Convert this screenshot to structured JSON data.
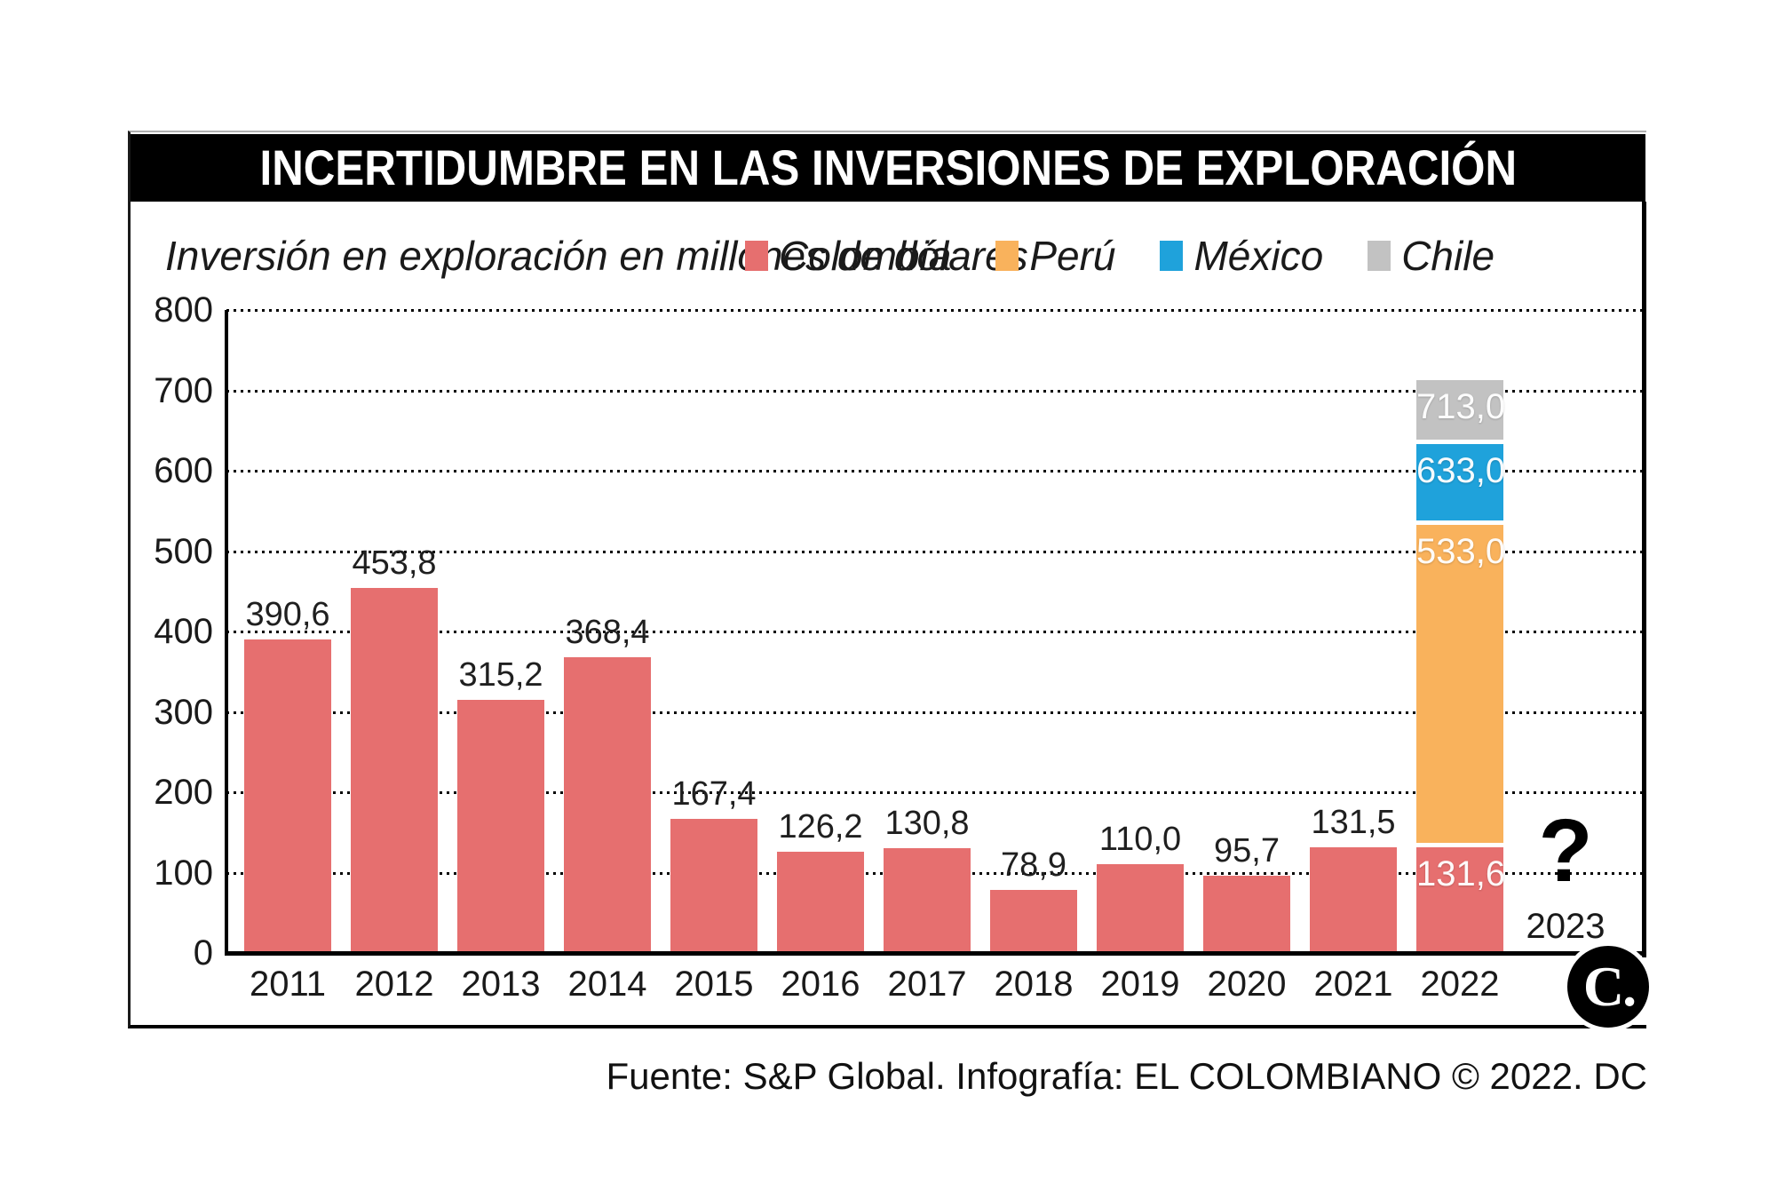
{
  "title": "INCERTIDUMBRE EN LAS INVERSIONES DE EXPLORACIÓN",
  "subtitle": "Inversión en exploración en millones de dólares",
  "legend": [
    {
      "label": "Colombia",
      "color": "#E66F6F"
    },
    {
      "label": "Perú",
      "color": "#F9B25C"
    },
    {
      "label": "México",
      "color": "#1FA2DB"
    },
    {
      "label": "Chile",
      "color": "#C2C2C2"
    }
  ],
  "footer": {
    "source": "Fuente: S&P Global. Infografía: EL COLOMBIANO © 2022. DC",
    "logo_text": "C."
  },
  "chart_data": {
    "type": "bar",
    "title": "INCERTIDUMBRE EN LAS INVERSIONES DE EXPLORACIÓN",
    "ylabel": "Inversión en exploración en millones de dólares",
    "ylim": [
      0,
      800
    ],
    "ytick_step": 100,
    "grid": "dotted-horizontal",
    "legend_position": "top",
    "categories": [
      "2011",
      "2012",
      "2013",
      "2014",
      "2015",
      "2016",
      "2017",
      "2018",
      "2019",
      "2020",
      "2021",
      "2022",
      "2023"
    ],
    "bars": [
      {
        "year": "2011",
        "series": "Colombia",
        "value": 390.6,
        "label": "390,6"
      },
      {
        "year": "2012",
        "series": "Colombia",
        "value": 453.8,
        "label": "453,8"
      },
      {
        "year": "2013",
        "series": "Colombia",
        "value": 315.2,
        "label": "315,2"
      },
      {
        "year": "2014",
        "series": "Colombia",
        "value": 368.4,
        "label": "368,4"
      },
      {
        "year": "2015",
        "series": "Colombia",
        "value": 167.4,
        "label": "167,4"
      },
      {
        "year": "2016",
        "series": "Colombia",
        "value": 126.2,
        "label": "126,2"
      },
      {
        "year": "2017",
        "series": "Colombia",
        "value": 130.8,
        "label": "130,8"
      },
      {
        "year": "2018",
        "series": "Colombia",
        "value": 78.9,
        "label": "78,9"
      },
      {
        "year": "2019",
        "series": "Colombia",
        "value": 110.0,
        "label": "110,0"
      },
      {
        "year": "2020",
        "series": "Colombia",
        "value": 95.7,
        "label": "95,7"
      },
      {
        "year": "2021",
        "series": "Colombia",
        "value": 131.5,
        "label": "131,5"
      }
    ],
    "stacked_bar_2022": {
      "year": "2022",
      "segments": [
        {
          "country": "Colombia",
          "cumulative": 131.6,
          "label": "131,6"
        },
        {
          "country": "Perú",
          "cumulative": 533.0,
          "label": "533,0"
        },
        {
          "country": "México",
          "cumulative": 633.0,
          "label": "633,0"
        },
        {
          "country": "Chile",
          "cumulative": 713.0,
          "label": "713,0"
        }
      ]
    },
    "future": {
      "year": "2023",
      "symbol": "?"
    }
  }
}
